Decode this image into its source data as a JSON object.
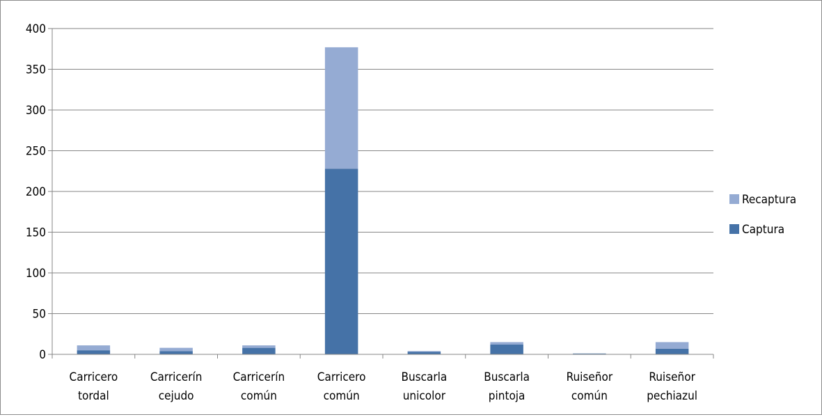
{
  "chart_data": {
    "type": "bar",
    "stacked": true,
    "title": "",
    "xlabel": "",
    "ylabel": "",
    "ylim": [
      0,
      400
    ],
    "yticks": [
      0,
      50,
      100,
      150,
      200,
      250,
      300,
      350,
      400
    ],
    "grid": true,
    "legend_position": "right",
    "categories": [
      [
        "Carricero",
        "tordal"
      ],
      [
        "Carricerín",
        "cejudo"
      ],
      [
        "Carricerín",
        "común"
      ],
      [
        "Carricero",
        "común"
      ],
      [
        "Buscarla",
        "unicolor"
      ],
      [
        "Buscarla",
        "pintoja"
      ],
      [
        "Ruiseñor",
        "común"
      ],
      [
        "Ruiseñor",
        "pechiazul"
      ]
    ],
    "series": [
      {
        "name": "Captura",
        "color": "#4572a7",
        "values": [
          5,
          4,
          8,
          228,
          3,
          12,
          1,
          7
        ]
      },
      {
        "name": "Recaptura",
        "color": "#95abd3",
        "values": [
          6,
          4,
          3,
          149,
          1,
          3,
          0,
          8
        ]
      }
    ],
    "legend_order": [
      "Recaptura",
      "Captura"
    ]
  }
}
